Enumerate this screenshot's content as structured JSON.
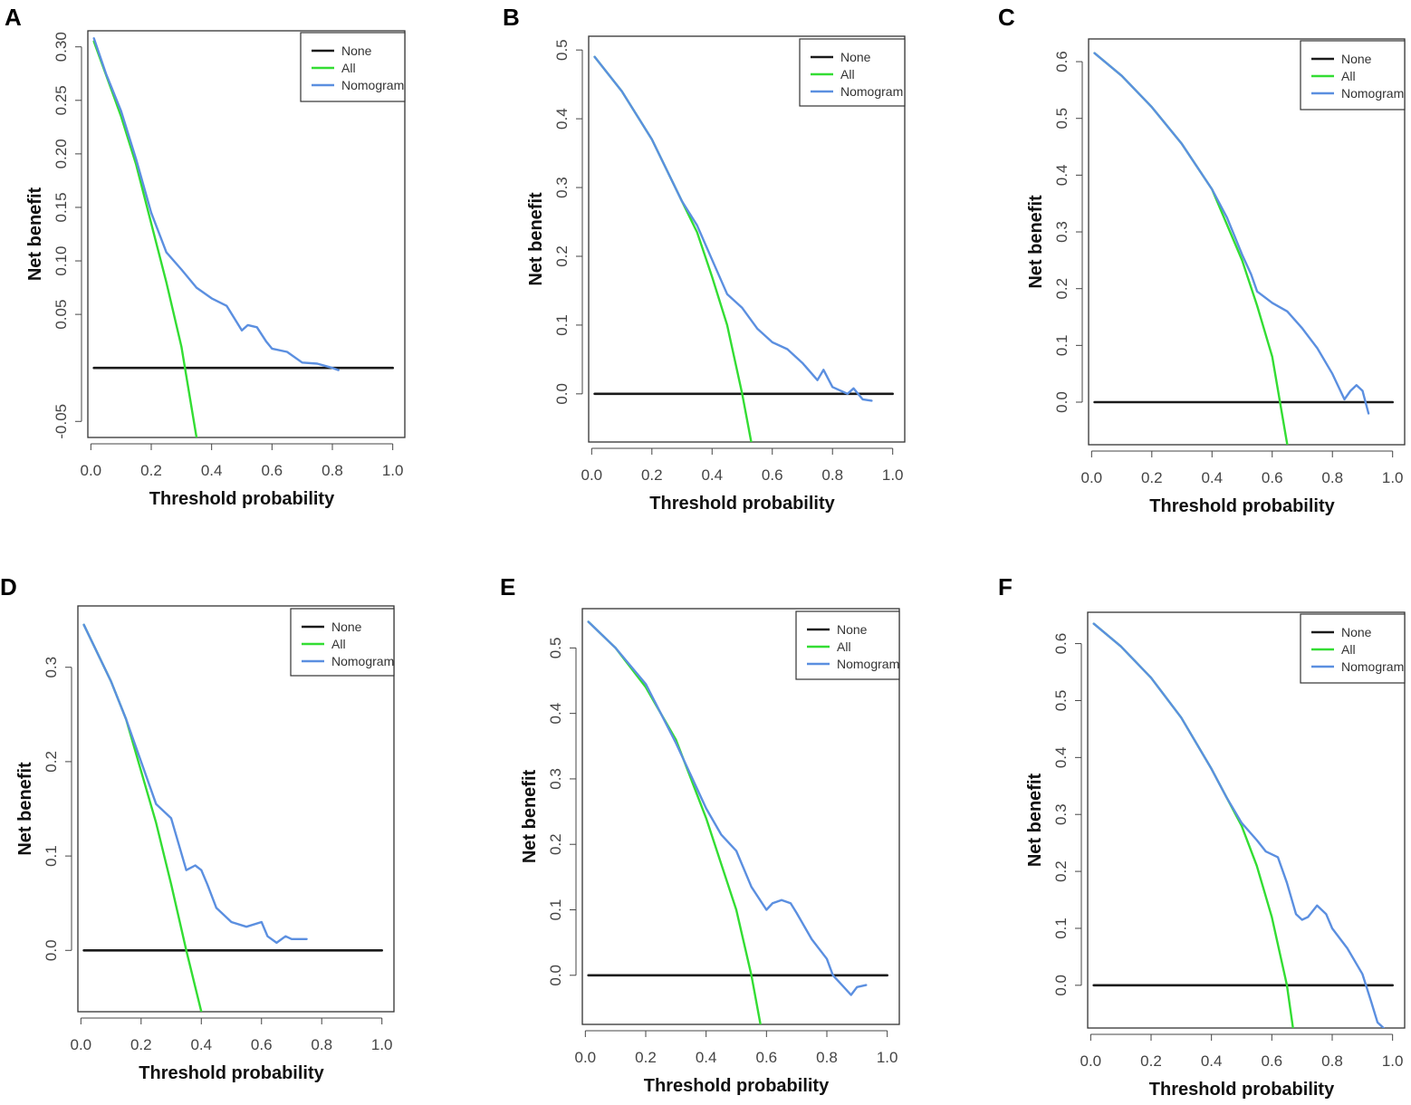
{
  "figure": {
    "panel_labels": [
      "A",
      "B",
      "C",
      "D",
      "E",
      "F"
    ],
    "colors": {
      "None": "#1a1a1a",
      "All": "#33dd33",
      "Nomogram": "#5b8fe0"
    }
  },
  "chart_data": [
    {
      "panel": "A",
      "type": "line",
      "title": "",
      "xlabel": "Threshold probability",
      "ylabel": "Net benefit",
      "xlim": [
        -0.01,
        1.04
      ],
      "ylim": [
        -0.065,
        0.315
      ],
      "xticks": [
        0.0,
        0.2,
        0.4,
        0.6,
        0.8,
        1.0
      ],
      "xtick_labels": [
        "0.0",
        "0.2",
        "0.4",
        "0.6",
        "0.8",
        "1.0"
      ],
      "yticks": [
        -0.05,
        0.05,
        0.1,
        0.15,
        0.2,
        0.25,
        0.3
      ],
      "ytick_labels": [
        "-0.05",
        "0.05",
        "0.10",
        "0.15",
        "0.20",
        "0.25",
        "0.30"
      ],
      "legend": [
        "None",
        "All",
        "Nomogram"
      ],
      "legend_position": "top-right",
      "series": [
        {
          "name": "None",
          "x": [
            0.01,
            1.0
          ],
          "y": [
            0.0,
            0.0
          ]
        },
        {
          "name": "All",
          "x": [
            0.01,
            0.1,
            0.15,
            0.2,
            0.25,
            0.3,
            0.35
          ],
          "y": [
            0.305,
            0.235,
            0.19,
            0.135,
            0.08,
            0.02,
            -0.065
          ]
        },
        {
          "name": "Nomogram",
          "x": [
            0.01,
            0.05,
            0.1,
            0.15,
            0.2,
            0.25,
            0.3,
            0.35,
            0.4,
            0.45,
            0.5,
            0.52,
            0.55,
            0.58,
            0.6,
            0.65,
            0.7,
            0.75,
            0.8,
            0.82
          ],
          "y": [
            0.308,
            0.275,
            0.24,
            0.195,
            0.145,
            0.108,
            0.092,
            0.075,
            0.065,
            0.058,
            0.035,
            0.04,
            0.038,
            0.025,
            0.018,
            0.015,
            0.005,
            0.004,
            0.0,
            -0.002
          ]
        }
      ]
    },
    {
      "panel": "B",
      "type": "line",
      "title": "",
      "xlabel": "Threshold probability",
      "ylabel": "Net benefit",
      "xlim": [
        -0.01,
        1.04
      ],
      "ylim": [
        -0.07,
        0.52
      ],
      "xticks": [
        0.0,
        0.2,
        0.4,
        0.6,
        0.8,
        1.0
      ],
      "xtick_labels": [
        "0.0",
        "0.2",
        "0.4",
        "0.6",
        "0.8",
        "1.0"
      ],
      "yticks": [
        0.0,
        0.1,
        0.2,
        0.3,
        0.4,
        0.5
      ],
      "ytick_labels": [
        "0.0",
        "0.1",
        "0.2",
        "0.3",
        "0.4",
        "0.5"
      ],
      "legend": [
        "None",
        "All",
        "Nomogram"
      ],
      "legend_position": "top-right",
      "series": [
        {
          "name": "None",
          "x": [
            0.01,
            1.0
          ],
          "y": [
            0.0,
            0.0
          ]
        },
        {
          "name": "All",
          "x": [
            0.01,
            0.1,
            0.2,
            0.3,
            0.35,
            0.4,
            0.45,
            0.5,
            0.53
          ],
          "y": [
            0.49,
            0.44,
            0.37,
            0.28,
            0.235,
            0.17,
            0.1,
            0.0,
            -0.07
          ]
        },
        {
          "name": "Nomogram",
          "x": [
            0.01,
            0.1,
            0.2,
            0.3,
            0.35,
            0.4,
            0.45,
            0.5,
            0.55,
            0.6,
            0.65,
            0.7,
            0.75,
            0.77,
            0.8,
            0.85,
            0.87,
            0.9,
            0.93
          ],
          "y": [
            0.49,
            0.44,
            0.37,
            0.28,
            0.245,
            0.195,
            0.145,
            0.125,
            0.095,
            0.075,
            0.065,
            0.045,
            0.02,
            0.035,
            0.01,
            0.0,
            0.008,
            -0.008,
            -0.01
          ]
        }
      ]
    },
    {
      "panel": "C",
      "type": "line",
      "title": "",
      "xlabel": "Threshold probability",
      "ylabel": "Net benefit",
      "xlim": [
        -0.01,
        1.04
      ],
      "ylim": [
        -0.075,
        0.64
      ],
      "xticks": [
        0.0,
        0.2,
        0.4,
        0.6,
        0.8,
        1.0
      ],
      "xtick_labels": [
        "0.0",
        "0.2",
        "0.4",
        "0.6",
        "0.8",
        "1.0"
      ],
      "yticks": [
        0.0,
        0.1,
        0.2,
        0.3,
        0.4,
        0.5,
        0.6
      ],
      "ytick_labels": [
        "0.0",
        "0.1",
        "0.2",
        "0.3",
        "0.4",
        "0.5",
        "0.6"
      ],
      "legend": [
        "None",
        "All",
        "Nomogram"
      ],
      "legend_position": "top-right",
      "series": [
        {
          "name": "None",
          "x": [
            0.01,
            1.0
          ],
          "y": [
            0.0,
            0.0
          ]
        },
        {
          "name": "All",
          "x": [
            0.01,
            0.1,
            0.2,
            0.3,
            0.4,
            0.5,
            0.55,
            0.6,
            0.65
          ],
          "y": [
            0.615,
            0.575,
            0.52,
            0.455,
            0.375,
            0.25,
            0.17,
            0.08,
            -0.075
          ]
        },
        {
          "name": "Nomogram",
          "x": [
            0.01,
            0.1,
            0.2,
            0.3,
            0.4,
            0.45,
            0.5,
            0.53,
            0.55,
            0.6,
            0.65,
            0.7,
            0.75,
            0.8,
            0.84,
            0.86,
            0.88,
            0.9,
            0.92
          ],
          "y": [
            0.615,
            0.575,
            0.52,
            0.455,
            0.375,
            0.325,
            0.26,
            0.225,
            0.195,
            0.175,
            0.16,
            0.13,
            0.095,
            0.05,
            0.005,
            0.02,
            0.03,
            0.02,
            -0.02
          ]
        }
      ]
    },
    {
      "panel": "D",
      "type": "line",
      "title": "",
      "xlabel": "Threshold probability",
      "ylabel": "Net benefit",
      "xlim": [
        -0.01,
        1.04
      ],
      "ylim": [
        -0.065,
        0.365
      ],
      "xticks": [
        0.0,
        0.2,
        0.4,
        0.6,
        0.8,
        1.0
      ],
      "xtick_labels": [
        "0.0",
        "0.2",
        "0.4",
        "0.6",
        "0.8",
        "1.0"
      ],
      "yticks": [
        0.0,
        0.1,
        0.2,
        0.3
      ],
      "ytick_labels": [
        "0.0",
        "0.1",
        "0.2",
        "0.3"
      ],
      "legend": [
        "None",
        "All",
        "Nomogram"
      ],
      "legend_position": "top-right",
      "series": [
        {
          "name": "None",
          "x": [
            0.01,
            1.0
          ],
          "y": [
            0.0,
            0.0
          ]
        },
        {
          "name": "All",
          "x": [
            0.01,
            0.1,
            0.15,
            0.2,
            0.25,
            0.3,
            0.35,
            0.4
          ],
          "y": [
            0.345,
            0.285,
            0.245,
            0.19,
            0.135,
            0.07,
            0.0,
            -0.065
          ]
        },
        {
          "name": "Nomogram",
          "x": [
            0.01,
            0.1,
            0.15,
            0.2,
            0.25,
            0.3,
            0.35,
            0.38,
            0.4,
            0.42,
            0.45,
            0.5,
            0.55,
            0.6,
            0.62,
            0.65,
            0.68,
            0.7,
            0.72,
            0.75
          ],
          "y": [
            0.345,
            0.285,
            0.245,
            0.2,
            0.155,
            0.14,
            0.085,
            0.09,
            0.085,
            0.07,
            0.045,
            0.03,
            0.025,
            0.03,
            0.015,
            0.008,
            0.015,
            0.012,
            0.012,
            0.012
          ]
        }
      ]
    },
    {
      "panel": "E",
      "type": "line",
      "title": "",
      "xlabel": "Threshold probability",
      "ylabel": "Net benefit",
      "xlim": [
        -0.01,
        1.04
      ],
      "ylim": [
        -0.075,
        0.56
      ],
      "xticks": [
        0.0,
        0.2,
        0.4,
        0.6,
        0.8,
        1.0
      ],
      "xtick_labels": [
        "0.0",
        "0.2",
        "0.4",
        "0.6",
        "0.8",
        "1.0"
      ],
      "yticks": [
        0.0,
        0.1,
        0.2,
        0.3,
        0.4,
        0.5
      ],
      "ytick_labels": [
        "0.0",
        "0.1",
        "0.2",
        "0.3",
        "0.4",
        "0.5"
      ],
      "legend": [
        "None",
        "All",
        "Nomogram"
      ],
      "legend_position": "top-right",
      "series": [
        {
          "name": "None",
          "x": [
            0.01,
            1.0
          ],
          "y": [
            0.0,
            0.0
          ]
        },
        {
          "name": "All",
          "x": [
            0.01,
            0.1,
            0.2,
            0.3,
            0.4,
            0.5,
            0.55,
            0.58
          ],
          "y": [
            0.54,
            0.5,
            0.44,
            0.36,
            0.24,
            0.1,
            0.0,
            -0.075
          ]
        },
        {
          "name": "Nomogram",
          "x": [
            0.01,
            0.1,
            0.2,
            0.3,
            0.35,
            0.4,
            0.45,
            0.5,
            0.55,
            0.6,
            0.62,
            0.65,
            0.68,
            0.7,
            0.75,
            0.8,
            0.82,
            0.85,
            0.88,
            0.9,
            0.93
          ],
          "y": [
            0.54,
            0.5,
            0.445,
            0.355,
            0.305,
            0.255,
            0.215,
            0.19,
            0.135,
            0.1,
            0.11,
            0.115,
            0.11,
            0.095,
            0.055,
            0.025,
            0.0,
            -0.015,
            -0.03,
            -0.018,
            -0.015
          ]
        }
      ]
    },
    {
      "panel": "F",
      "type": "line",
      "title": "",
      "xlabel": "Threshold probability",
      "ylabel": "Net benefit",
      "xlim": [
        -0.01,
        1.04
      ],
      "ylim": [
        -0.075,
        0.655
      ],
      "xticks": [
        0.0,
        0.2,
        0.4,
        0.6,
        0.8,
        1.0
      ],
      "xtick_labels": [
        "0.0",
        "0.2",
        "0.4",
        "0.6",
        "0.8",
        "1.0"
      ],
      "yticks": [
        0.0,
        0.1,
        0.2,
        0.3,
        0.4,
        0.5,
        0.6
      ],
      "ytick_labels": [
        "0.0",
        "0.1",
        "0.2",
        "0.3",
        "0.4",
        "0.5",
        "0.6"
      ],
      "legend": [
        "None",
        "All",
        "Nomogram"
      ],
      "legend_position": "top-right",
      "series": [
        {
          "name": "None",
          "x": [
            0.01,
            1.0
          ],
          "y": [
            0.0,
            0.0
          ]
        },
        {
          "name": "All",
          "x": [
            0.01,
            0.1,
            0.2,
            0.3,
            0.4,
            0.5,
            0.55,
            0.6,
            0.65,
            0.67
          ],
          "y": [
            0.635,
            0.595,
            0.54,
            0.47,
            0.38,
            0.28,
            0.21,
            0.12,
            0.0,
            -0.075
          ]
        },
        {
          "name": "Nomogram",
          "x": [
            0.01,
            0.1,
            0.2,
            0.3,
            0.4,
            0.45,
            0.5,
            0.55,
            0.58,
            0.62,
            0.65,
            0.68,
            0.7,
            0.72,
            0.75,
            0.78,
            0.8,
            0.85,
            0.9,
            0.93,
            0.95,
            0.97
          ],
          "y": [
            0.635,
            0.595,
            0.54,
            0.47,
            0.38,
            0.33,
            0.285,
            0.255,
            0.235,
            0.225,
            0.18,
            0.125,
            0.115,
            0.12,
            0.14,
            0.125,
            0.1,
            0.065,
            0.02,
            -0.03,
            -0.065,
            -0.075
          ]
        }
      ]
    }
  ]
}
